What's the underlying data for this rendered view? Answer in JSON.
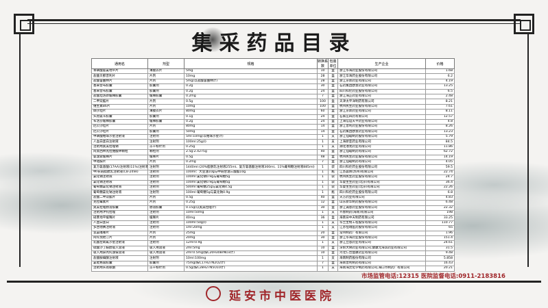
{
  "title": "集采药品目录",
  "columns": [
    "通用名",
    "剂型",
    "规格",
    "转换系数",
    "包装单位",
    "生产企业",
    "价格"
  ],
  "rows": [
    [
      "苯磺酸氨氯地平片",
      "薄膜衣片",
      "5mg",
      "10",
      "盒",
      "浙江华海药业股份有限公司",
      "1.68"
    ],
    [
      "盐酸贝那普利片",
      "片剂",
      "10mg",
      "28",
      "盒",
      "浙江华海药业股份有限公司",
      "6.2"
    ],
    [
      "盐酸舍曲林片",
      "片剂",
      "5mg(以盐酸舍曲林计)",
      "28",
      "盒",
      "浙江京新药业有限公司",
      "4.19"
    ],
    [
      "塞来昔布胶囊",
      "胶囊剂",
      "0.2g",
      "30",
      "盒",
      "石药集团欧意药业有限公司",
      "13.25"
    ],
    [
      "塞来昔布胶囊",
      "胶囊剂",
      "0.2g",
      "24",
      "盒",
      "四川科伦药业股份有限公司",
      "6.5"
    ],
    [
      "盐酸坦洛新缓释胶囊",
      "缓释胶囊",
      "0.2mg",
      "7",
      "盒",
      "浙江海正药业有限公司",
      "2.48"
    ],
    [
      "二甲双胍片",
      "片剂",
      "0.5g",
      "100",
      "盒",
      "天津太平洋制药有限公司",
      "8.21"
    ],
    [
      "维生素B6片",
      "片剂",
      "10mg",
      "100",
      "盒",
      "杭州民生药业股份有限公司",
      "7.61"
    ],
    [
      "缬沙坦片",
      "薄膜衣片",
      "80mg",
      "60",
      "盒",
      "浙江京新药业有限公司",
      "8.11"
    ],
    [
      "头孢氨苄胶囊",
      "胶囊剂",
      "0.1g",
      "24",
      "盒",
      "石家庄四药有限公司",
      "12.57"
    ],
    [
      "布洛芬缓释胶囊",
      "缓释胶囊",
      "0.2g",
      "24",
      "盒",
      "上海信谊天平药业有限公司",
      "4.8"
    ],
    [
      "厄贝沙坦片",
      "片剂",
      "80mg",
      "14",
      "盒",
      "浙江普利药业股份有限公司",
      "8.26"
    ],
    [
      "厄贝沙坦片",
      "胶囊剂",
      "50mg",
      "14",
      "盒",
      "石药集团欧意药业有限公司",
      "13.23"
    ],
    [
      "甲磺酸帕珠沙星注射液",
      "注射剂",
      "5ml:10mg(以帕珠沙星计)",
      "1",
      "支",
      "浙江仙琚制药股份有限公司",
      "5.79"
    ],
    [
      "人血白蛋白注射液",
      "注射剂",
      "100ml:25g(I)",
      "1",
      "支",
      "上海新亚药业有限公司",
      "84.5"
    ],
    [
      "注射用奥美拉唑钠",
      "冻干粉针剂",
      "0.25g",
      "1",
      "支",
      "湖北潜龙药业有限公司",
      "11.86"
    ],
    [
      "阿莫西林克拉维酸钾颗粒",
      "颗粒剂",
      "2.5g:2.4275g",
      "40",
      "盒",
      "浙江仙琚制药有限公司",
      "62.72"
    ],
    [
      "氨溴索缓释片",
      "缓释片",
      "0.5g",
      "48",
      "盒",
      "杭州民生药业股份有限公司",
      "14.19"
    ],
    [
      "甲钴胺片",
      "片剂",
      "0.2mg",
      "7",
      "盒",
      "浙江仙琚制药有限公司",
      "4.05"
    ],
    [
      "复方氨基酸(17AA)注射液(11%)注射液",
      "注射剂",
      "1440ml:(20%脂肪乳注射液255ml、复方氨基酸注射液300ml、11%葡萄糖注射液885ml)",
      "1",
      "袋",
      "四川科伦药业股份有限公司",
      "59.5"
    ],
    [
      "中/长链脂肪乳注射液(C8-24Ve)",
      "注射剂",
      "100ml：大豆油10g与中链甘油三酸酯10g",
      "1",
      "瓶",
      "江苏晨牌(苏州)有限公司",
      "22.74"
    ],
    [
      "氯化钠注射液",
      "注射剂",
      "100ml:氯化钠0.9g与葡萄糖5g",
      "1",
      "袋",
      "杭州民生药业股份有限公司",
      "24.7"
    ],
    [
      "氯化钠注射液",
      "注射剂",
      "100ml:氯化钠0.9g与葡萄糖5g",
      "1",
      "袋",
      "华夏生生药业(北京)有限公司",
      "36.4"
    ],
    [
      "葡萄糖氯化钠注射液",
      "注射剂",
      "500ml:葡萄糖25g与氯化钠4.5g",
      "1",
      "袋",
      "华夏生生药业(北京)有限公司",
      "22.26"
    ],
    [
      "葡萄糖氯化钠注射液",
      "注射剂",
      "100ml:葡萄糖5g与氯化钠0.9g",
      "1",
      "瓶",
      "四川科伦药业股份有限公司",
      "6.8"
    ],
    [
      "盐酸二甲双胍片",
      "片剂",
      "0.5g",
      "40",
      "盒",
      "天方药业有限公司",
      "4.83"
    ],
    [
      "克拉霉素片",
      "片剂",
      "0.25g",
      "12",
      "盒",
      "山东新华制药股份有限公司",
      "6.48"
    ],
    [
      "奥美拉唑肠溶胶囊",
      "肠溶胶囊",
      "0.15g(以奥美拉唑计)",
      "30",
      "盒",
      "浙江诚意药业股份有限公司",
      "22.32"
    ],
    [
      "注射用泮托拉唑",
      "注射剂",
      "10ml:50mg",
      "1",
      "支",
      "齐鲁制药(海南)有限公司",
      "198"
    ],
    [
      "硝苯地平缓释片",
      "缓释片",
      "40mg",
      "36",
      "盒",
      "海南日中天制药有限公司",
      "33.25"
    ],
    [
      "人血白蛋白",
      "注射剂",
      "100ml:50g(I)",
      "1",
      "支",
      "华兰生物工程股份有限公司",
      "110.77"
    ],
    [
      "多西他赛注射液",
      "注射剂",
      "1ml:20mg",
      "1",
      "支",
      "江苏恒瑞医药股份有限公司",
      "65"
    ],
    [
      "氢氯噻嗪片",
      "片剂",
      "25mg",
      "20",
      "盒",
      "常州制药厂有限公司",
      "1.96"
    ],
    [
      "阿托伐他汀片",
      "片剂",
      "20mg",
      "30",
      "盒",
      "浙江华海药业股份有限公司",
      "151.4"
    ],
    [
      "乳酸左氧氟沙星注射液",
      "注射剂",
      "12ml:0.9g",
      "1",
      "支",
      "浙江立恩药业有限公司",
      "24.61"
    ],
    [
      "硫酸沙丁胺醇吸入溶液",
      "吸入用溶液",
      "2ml:5mg",
      "10",
      "盒",
      "深圳大佛药业有限公司,健康元海滨药业有限公司",
      "31.5"
    ],
    [
      "吸入用异丙托溴铵溶液",
      "吸入用溶液",
      "2ml:0.5mg(按C20H30BrNO3计)",
      "10",
      "盒",
      "河北仁合益康药业有限公司",
      "9.48"
    ],
    [
      "盐酸胺碘酮注射液",
      "注射剂",
      "10ml:100mg",
      "1",
      "支",
      "海南制药股份有限公司",
      "5.858"
    ],
    [
      "氯吡格雷胶囊",
      "胶囊剂",
      "75mg(按C17H27N2O2计)",
      "7",
      "盒",
      "海南普利制药有限公司",
      "16.43"
    ],
    [
      "注射用头孢哌酮",
      "冻干粉针剂",
      "0.5g(按C28H27N5O10计)",
      "1",
      "支",
      "海南海灵化学制药有限公司,海口市制药厂有限公司",
      "20.21"
    ]
  ],
  "hotline": "市场监管电话:12315   医院监督电话:0911-2183816",
  "hospital": "延安市中医医院",
  "logo_text": "医",
  "colors": {
    "accent": "#a0262a",
    "frame": "#222222"
  }
}
